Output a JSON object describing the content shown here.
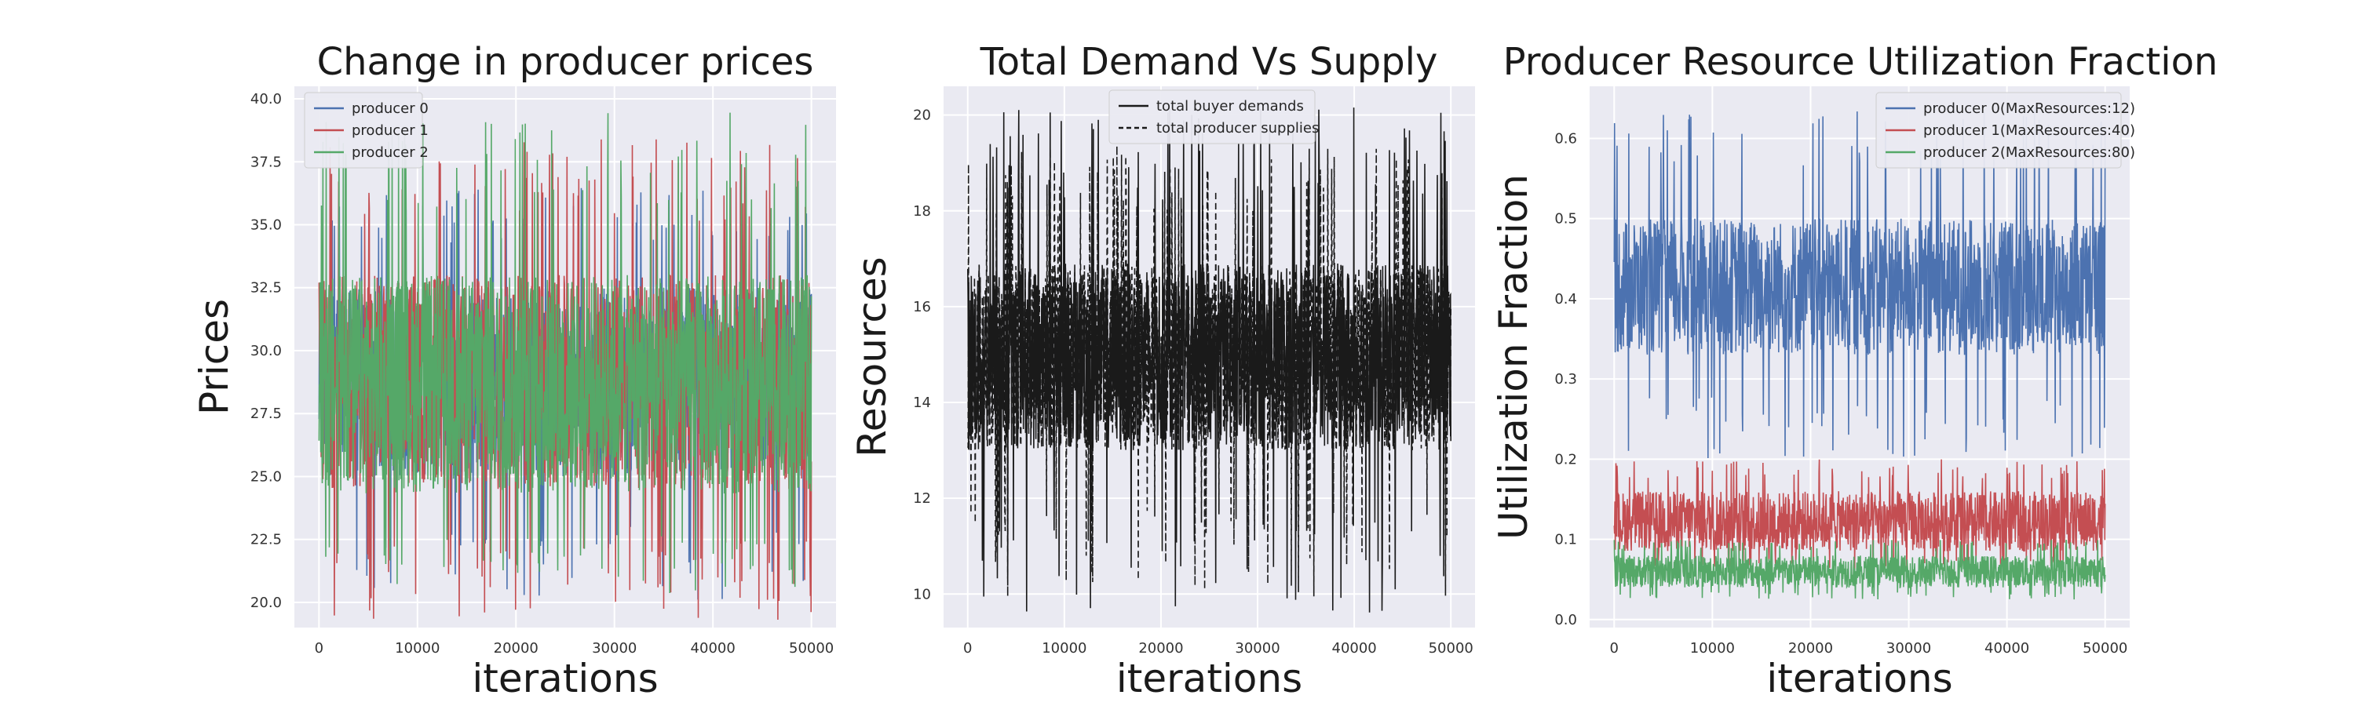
{
  "chart_data": [
    {
      "type": "line",
      "title": "Change in producer prices",
      "xlabel": "iterations",
      "ylabel": "Prices",
      "xlim": [
        -2500,
        52500
      ],
      "ylim": [
        19.0,
        40.5
      ],
      "xticks": [
        0,
        10000,
        20000,
        30000,
        40000,
        50000
      ],
      "yticks": [
        20.0,
        22.5,
        25.0,
        27.5,
        30.0,
        32.5,
        35.0,
        37.5,
        40.0
      ],
      "ytick_decimals": 1,
      "grid": true,
      "legend_position": "upper-left",
      "x_range": [
        0,
        50000
      ],
      "series": [
        {
          "name": "producer 0",
          "color": "#4c72b0",
          "dash": "",
          "center": 28.5,
          "band_lo": 25.0,
          "band_hi": 32.5,
          "min": 20.1,
          "max": 36.5
        },
        {
          "name": "producer 1",
          "color": "#c44e52",
          "dash": "",
          "center": 28.5,
          "band_lo": 24.5,
          "band_hi": 33.0,
          "min": 19.3,
          "max": 38.4
        },
        {
          "name": "producer 2",
          "color": "#55a868",
          "dash": "",
          "center": 28.5,
          "band_lo": 24.3,
          "band_hi": 33.0,
          "min": 20.3,
          "max": 39.5
        }
      ]
    },
    {
      "type": "line",
      "title": "Total Demand Vs Supply",
      "xlabel": "iterations",
      "ylabel": "Resources",
      "xlim": [
        -2500,
        52500
      ],
      "ylim": [
        9.3,
        20.6
      ],
      "xticks": [
        0,
        10000,
        20000,
        30000,
        40000,
        50000
      ],
      "yticks": [
        10,
        12,
        14,
        16,
        18,
        20
      ],
      "ytick_decimals": 0,
      "grid": true,
      "legend_position": "upper-center",
      "x_range": [
        0,
        50000
      ],
      "series": [
        {
          "name": "total producer supplies",
          "color": "#1a1a1a",
          "dash": "8,5",
          "center": 14.9,
          "band_lo": 13.0,
          "band_hi": 16.9,
          "min": 9.9,
          "max": 19.4
        },
        {
          "name": "total buyer demands",
          "color": "#1a1a1a",
          "dash": "",
          "center": 14.9,
          "band_lo": 13.0,
          "band_hi": 16.9,
          "min": 9.6,
          "max": 20.2
        }
      ]
    },
    {
      "type": "line",
      "title": "Producer Resource Utilization Fraction",
      "xlabel": "iterations",
      "ylabel": "Utilization Fraction",
      "xlim": [
        -2500,
        52500
      ],
      "ylim": [
        -0.01,
        0.665
      ],
      "xticks": [
        0,
        10000,
        20000,
        30000,
        40000,
        50000
      ],
      "yticks": [
        0.0,
        0.1,
        0.2,
        0.3,
        0.4,
        0.5,
        0.6
      ],
      "ytick_decimals": 1,
      "grid": true,
      "legend_position": "upper-right",
      "x_range": [
        0,
        50000
      ],
      "series": [
        {
          "name": "producer 0(MaxResources:12)",
          "color": "#4c72b0",
          "dash": "",
          "center": 0.415,
          "band_lo": 0.33,
          "band_hi": 0.5,
          "min": 0.2,
          "max": 0.64
        },
        {
          "name": "producer 1(MaxResources:40)",
          "color": "#c44e52",
          "dash": "",
          "center": 0.12,
          "band_lo": 0.085,
          "band_hi": 0.16,
          "min": 0.06,
          "max": 0.2
        },
        {
          "name": "producer 2(MaxResources:80)",
          "color": "#55a868",
          "dash": "",
          "center": 0.058,
          "band_lo": 0.04,
          "band_hi": 0.08,
          "min": 0.025,
          "max": 0.1
        }
      ]
    }
  ]
}
